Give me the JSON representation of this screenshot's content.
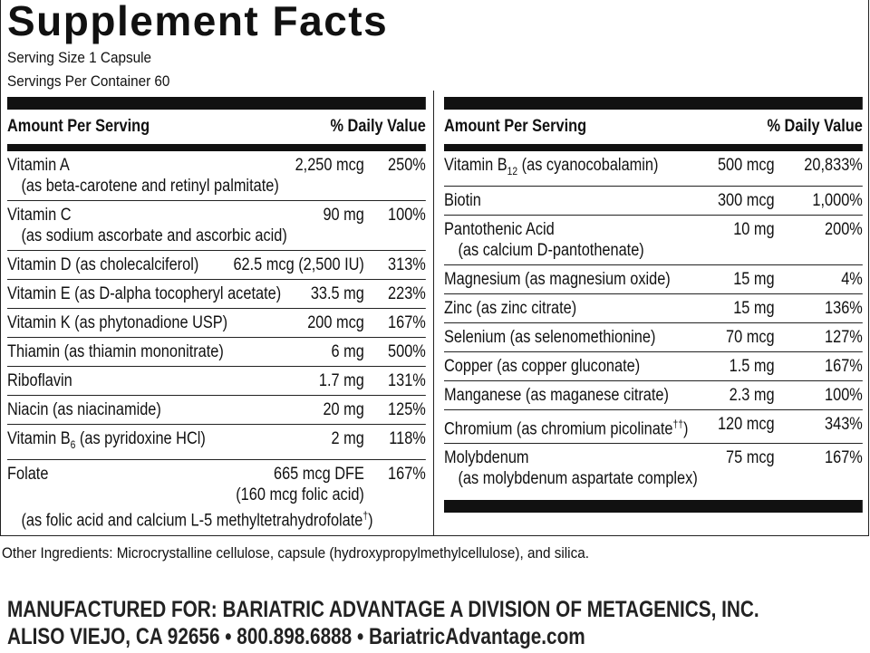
{
  "title": "Supplement Facts",
  "serving_size": "Serving Size 1 Capsule",
  "servings_per_container": "Servings Per Container 60",
  "columns": [
    {
      "header": {
        "amount": "Amount Per Serving",
        "dv": "% Daily Value"
      },
      "rows": [
        {
          "name": "Vitamin A",
          "amount": "2,250 mcg",
          "dv": "250%",
          "note": "(as beta-carotene and retinyl palmitate)"
        },
        {
          "name": "Vitamin C",
          "amount": "90 mg",
          "dv": "100%",
          "note": "(as sodium ascorbate and ascorbic acid)"
        },
        {
          "name": "Vitamin D (as cholecalciferol)",
          "amount": "62.5 mcg (2,500 IU)",
          "dv": "313%"
        },
        {
          "name": "Vitamin E (as D-alpha tocopheryl acetate)",
          "amount": "33.5 mg",
          "dv": "223%"
        },
        {
          "name": "Vitamin K (as phytonadione USP)",
          "amount": "200 mcg",
          "dv": "167%"
        },
        {
          "name": "Thiamin (as thiamin mononitrate)",
          "amount": "6 mg",
          "dv": "500%"
        },
        {
          "name": "Riboflavin",
          "amount": "1.7 mg",
          "dv": "131%"
        },
        {
          "name": "Niacin (as niacinamide)",
          "amount": "20 mg",
          "dv": "125%"
        },
        {
          "name": [
            "Vitamin B",
            {
              "sub": "6"
            },
            " (as pyridoxine HCl)"
          ],
          "amount": "2 mg",
          "dv": "118%"
        },
        {
          "name": "Folate",
          "amount": "665 mcg DFE",
          "dv": "167%",
          "amount_note": "(160 mcg folic acid)",
          "note": [
            "(as folic acid and calcium L-5 methyltetrahydrofolate",
            {
              "sup": "†"
            },
            ")"
          ]
        }
      ]
    },
    {
      "header": {
        "amount": "Amount Per Serving",
        "dv": "% Daily Value"
      },
      "rows": [
        {
          "name": [
            "Vitamin B",
            {
              "sub": "12"
            },
            " (as cyanocobalamin)"
          ],
          "amount": "500 mcg",
          "dv": "20,833%"
        },
        {
          "name": "Biotin",
          "amount": "300 mcg",
          "dv": "1,000%"
        },
        {
          "name": "Pantothenic Acid",
          "amount": "10 mg",
          "dv": "200%",
          "note": "(as calcium D-pantothenate)"
        },
        {
          "name": "Magnesium (as magnesium oxide)",
          "amount": "15 mg",
          "dv": "4%"
        },
        {
          "name": "Zinc (as zinc citrate)",
          "amount": "15 mg",
          "dv": "136%"
        },
        {
          "name": "Selenium (as selenomethionine)",
          "amount": "70 mcg",
          "dv": "127%"
        },
        {
          "name": "Copper (as copper gluconate)",
          "amount": "1.5 mg",
          "dv": "167%"
        },
        {
          "name": "Manganese (as maganese citrate)",
          "amount": "2.3 mg",
          "dv": "100%"
        },
        {
          "name": [
            "Chromium (as chromium picolinate",
            {
              "sup": "††"
            },
            ")"
          ],
          "amount": "120 mcg",
          "dv": "343%"
        },
        {
          "name": "Molybdenum",
          "amount": "75 mcg",
          "dv": "167%",
          "note": "(as molybdenum aspartate complex)"
        }
      ]
    }
  ],
  "other_ingredients": "Other Ingredients: Microcrystalline cellulose, capsule (hydroxypropylmethylcellulose), and silica.",
  "manufacturer": [
    "MANUFACTURED FOR: BARIATRIC ADVANTAGE A DIVISION OF METAGENICS, INC.",
    "ALISO VIEJO, CA 92656 • 800.898.6888 • BariatricAdvantage.com"
  ]
}
